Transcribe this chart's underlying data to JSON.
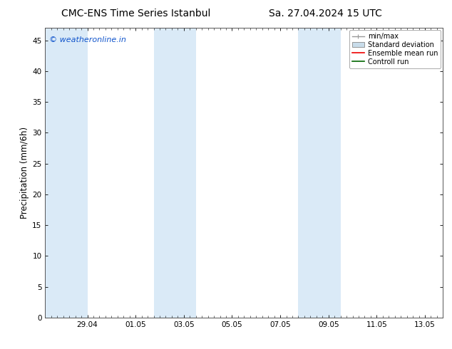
{
  "title_left": "CMC-ENS Time Series Istanbul",
  "title_right": "Sa. 27.04.2024 15 UTC",
  "ylabel": "Precipitation (mm/6h)",
  "watermark": "© weatheronline.in",
  "watermark_color": "#1155cc",
  "ylim": [
    0,
    47
  ],
  "yticks": [
    0,
    5,
    10,
    15,
    20,
    25,
    30,
    35,
    40,
    45
  ],
  "xlim": [
    0,
    16.5
  ],
  "shaded_bands": [
    {
      "xmin": 0.0,
      "xmax": 1.75,
      "color": "#daeaf7"
    },
    {
      "xmin": 4.5,
      "xmax": 6.25,
      "color": "#daeaf7"
    },
    {
      "xmin": 10.5,
      "xmax": 12.25,
      "color": "#daeaf7"
    }
  ],
  "xtick_labels": [
    "29.04",
    "01.05",
    "03.05",
    "05.05",
    "07.05",
    "09.05",
    "11.05",
    "13.05"
  ],
  "xtick_positions": [
    1.75,
    3.75,
    5.75,
    7.75,
    9.75,
    11.75,
    13.75,
    15.75
  ],
  "legend_entries": [
    {
      "label": "min/max",
      "color": "#999999",
      "type": "errorbar"
    },
    {
      "label": "Standard deviation",
      "color": "#c8dcea",
      "type": "box"
    },
    {
      "label": "Ensemble mean run",
      "color": "#ee0000",
      "type": "line"
    },
    {
      "label": "Controll run",
      "color": "#006600",
      "type": "line"
    }
  ],
  "title_fontsize": 10,
  "tick_fontsize": 7.5,
  "ylabel_fontsize": 8.5,
  "legend_fontsize": 7,
  "watermark_fontsize": 8,
  "background_color": "#ffffff"
}
